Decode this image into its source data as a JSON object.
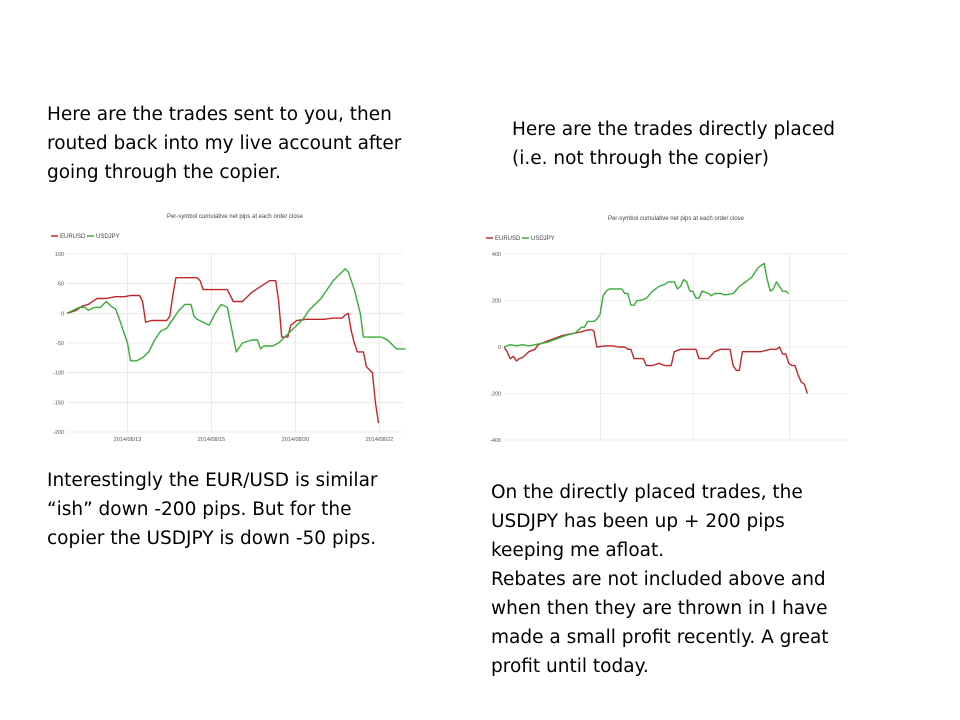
{
  "notes": {
    "top_left": "Here are the trades sent to you, then\nrouted back into my live account after\ngoing through the copier.",
    "top_right": "Here are the trades directly placed\n(i.e. not through the copier)",
    "bottom_left": "Interestingly the EUR/USD is similar\n“ish” down -200 pips. But for the\ncopier the USDJPY is down -50 pips.",
    "bottom_right": "On the directly placed trades, the\nUSDJPY has been up + 200 pips\nkeeping me afloat.\nRebates are not included above  and\nwhen then they are thrown in I have\nmade a small profit recently. A great\nprofit until today."
  },
  "colors": {
    "EURUSD": "#c0282d",
    "USDJPY": "#3aac3a",
    "grid": "#dddddd"
  },
  "chart_data": [
    {
      "type": "line",
      "title": "Per-symbol cumulative net pips at each order close",
      "legend": [
        "EURUSD",
        "USDJPY"
      ],
      "legend_position": "top-left",
      "grid": true,
      "ylim": [
        -200,
        100
      ],
      "yticks": [
        100,
        50,
        0,
        -50,
        -100,
        -150,
        -200
      ],
      "xlim": [
        0,
        100
      ],
      "xticks": [
        {
          "pos": 18,
          "label": "2014/08/13"
        },
        {
          "pos": 43,
          "label": "2014/08/15"
        },
        {
          "pos": 68,
          "label": "2014/08/20"
        },
        {
          "pos": 93,
          "label": "2014/08/22"
        }
      ],
      "series": [
        {
          "name": "EURUSD",
          "points": [
            [
              0,
              0
            ],
            [
              3,
              5
            ],
            [
              5,
              12
            ],
            [
              7,
              15
            ],
            [
              9,
              22
            ],
            [
              10,
              25
            ],
            [
              13,
              25
            ],
            [
              16,
              28
            ],
            [
              19,
              28
            ],
            [
              21,
              30
            ],
            [
              24,
              30
            ],
            [
              25,
              20
            ],
            [
              26,
              -15
            ],
            [
              28,
              -12
            ],
            [
              33,
              -12
            ],
            [
              34,
              -5
            ],
            [
              35,
              30
            ],
            [
              36,
              60
            ],
            [
              43,
              60
            ],
            [
              44,
              55
            ],
            [
              45,
              40
            ],
            [
              53,
              40
            ],
            [
              54,
              30
            ],
            [
              55,
              20
            ],
            [
              58,
              20
            ],
            [
              61,
              35
            ],
            [
              64,
              45
            ],
            [
              67,
              55
            ],
            [
              69,
              55
            ],
            [
              70,
              20
            ],
            [
              71,
              -40
            ],
            [
              73,
              -40
            ],
            [
              74,
              -20
            ],
            [
              76,
              -12
            ],
            [
              79,
              -10
            ],
            [
              84,
              -10
            ],
            [
              85,
              -10
            ],
            [
              88,
              -8
            ],
            [
              91,
              -8
            ],
            [
              92,
              -3
            ],
            [
              93,
              0
            ],
            [
              94,
              -30
            ],
            [
              95,
              -50
            ],
            [
              96,
              -65
            ],
            [
              98,
              -65
            ],
            [
              99,
              -90
            ],
            [
              100,
              -95
            ],
            [
              101,
              -100
            ],
            [
              102,
              -150
            ],
            [
              103,
              -185
            ]
          ]
        },
        {
          "name": "USDJPY",
          "points": [
            [
              0,
              0
            ],
            [
              2,
              5
            ],
            [
              4,
              10
            ],
            [
              6,
              10
            ],
            [
              7,
              5
            ],
            [
              9,
              10
            ],
            [
              11,
              10
            ],
            [
              13,
              20
            ],
            [
              15,
              10
            ],
            [
              16,
              8
            ],
            [
              17,
              -5
            ],
            [
              18,
              -20
            ],
            [
              20,
              -50
            ],
            [
              21,
              -80
            ],
            [
              23,
              -80
            ],
            [
              25,
              -75
            ],
            [
              27,
              -65
            ],
            [
              29,
              -45
            ],
            [
              31,
              -30
            ],
            [
              33,
              -25
            ],
            [
              35,
              -10
            ],
            [
              37,
              5
            ],
            [
              39,
              15
            ],
            [
              41,
              15
            ],
            [
              42,
              -5
            ],
            [
              43,
              -10
            ],
            [
              45,
              -15
            ],
            [
              47,
              -20
            ],
            [
              48,
              -10
            ],
            [
              49,
              0
            ],
            [
              51,
              15
            ],
            [
              53,
              10
            ],
            [
              55,
              -40
            ],
            [
              56,
              -65
            ],
            [
              58,
              -50
            ],
            [
              61,
              -45
            ],
            [
              63,
              -45
            ],
            [
              64,
              -60
            ],
            [
              65,
              -55
            ],
            [
              68,
              -55
            ],
            [
              70,
              -50
            ],
            [
              72,
              -40
            ],
            [
              74,
              -30
            ],
            [
              76,
              -20
            ],
            [
              78,
              -10
            ],
            [
              80,
              5
            ],
            [
              82,
              15
            ],
            [
              84,
              25
            ],
            [
              86,
              40
            ],
            [
              88,
              55
            ],
            [
              90,
              65
            ],
            [
              92,
              75
            ],
            [
              93,
              70
            ],
            [
              95,
              40
            ],
            [
              97,
              0
            ],
            [
              98,
              -40
            ],
            [
              104,
              -40
            ],
            [
              106,
              -45
            ],
            [
              108,
              -55
            ],
            [
              109,
              -60
            ],
            [
              112,
              -60
            ]
          ]
        }
      ]
    },
    {
      "type": "line",
      "title": "Per-symbol cumulative net pips at each order close",
      "legend": [
        "EURUSD",
        "USDJPY"
      ],
      "legend_position": "top-left",
      "grid": true,
      "ylim": [
        -400,
        400
      ],
      "yticks": [
        400,
        200,
        0,
        -200,
        -400
      ],
      "xlim": [
        0,
        100
      ],
      "xticks": [
        {
          "pos": 28,
          "label": "2014/08/07"
        },
        {
          "pos": 55,
          "label": "2014/08/14"
        },
        {
          "pos": 83,
          "label": "2014/08/20"
        }
      ],
      "series": [
        {
          "name": "EURUSD",
          "points": [
            [
              0,
              0
            ],
            [
              1,
              -20
            ],
            [
              2,
              -50
            ],
            [
              3,
              -40
            ],
            [
              4,
              -60
            ],
            [
              5,
              -50
            ],
            [
              6,
              -45
            ],
            [
              8,
              -20
            ],
            [
              10,
              -10
            ],
            [
              11,
              10
            ],
            [
              13,
              20
            ],
            [
              15,
              30
            ],
            [
              17,
              40
            ],
            [
              19,
              50
            ],
            [
              21,
              55
            ],
            [
              23,
              60
            ],
            [
              25,
              65
            ],
            [
              26,
              70
            ],
            [
              28,
              75
            ],
            [
              29,
              70
            ],
            [
              30,
              0
            ],
            [
              33,
              5
            ],
            [
              35,
              5
            ],
            [
              37,
              0
            ],
            [
              39,
              0
            ],
            [
              40,
              -10
            ],
            [
              41,
              -10
            ],
            [
              42,
              -50
            ],
            [
              43,
              -50
            ],
            [
              45,
              -50
            ],
            [
              46,
              -80
            ],
            [
              48,
              -80
            ],
            [
              50,
              -70
            ],
            [
              52,
              -80
            ],
            [
              54,
              -80
            ],
            [
              55,
              -20
            ],
            [
              57,
              -10
            ],
            [
              59,
              -10
            ],
            [
              62,
              -10
            ],
            [
              63,
              -50
            ],
            [
              66,
              -50
            ],
            [
              68,
              -20
            ],
            [
              70,
              -10
            ],
            [
              73,
              -10
            ],
            [
              74,
              -80
            ],
            [
              75,
              -100
            ],
            [
              76,
              -100
            ],
            [
              77,
              -20
            ],
            [
              80,
              -20
            ],
            [
              83,
              -20
            ],
            [
              86,
              -10
            ],
            [
              88,
              -10
            ],
            [
              89,
              0
            ],
            [
              90,
              -30
            ],
            [
              91,
              -30
            ],
            [
              92,
              -70
            ],
            [
              93,
              -80
            ],
            [
              94,
              -80
            ],
            [
              95,
              -120
            ],
            [
              96,
              -150
            ],
            [
              97,
              -160
            ],
            [
              98,
              -200
            ]
          ]
        },
        {
          "name": "USDJPY",
          "points": [
            [
              0,
              0
            ],
            [
              2,
              10
            ],
            [
              4,
              5
            ],
            [
              6,
              10
            ],
            [
              8,
              5
            ],
            [
              10,
              10
            ],
            [
              12,
              15
            ],
            [
              14,
              20
            ],
            [
              16,
              30
            ],
            [
              18,
              40
            ],
            [
              20,
              50
            ],
            [
              23,
              60
            ],
            [
              25,
              85
            ],
            [
              26,
              85
            ],
            [
              27,
              110
            ],
            [
              29,
              110
            ],
            [
              30,
              120
            ],
            [
              31,
              140
            ],
            [
              32,
              220
            ],
            [
              33,
              240
            ],
            [
              34,
              250
            ],
            [
              38,
              250
            ],
            [
              39,
              230
            ],
            [
              40,
              230
            ],
            [
              41,
              180
            ],
            [
              42,
              180
            ],
            [
              43,
              200
            ],
            [
              44,
              200
            ],
            [
              46,
              210
            ],
            [
              48,
              240
            ],
            [
              50,
              260
            ],
            [
              52,
              270
            ],
            [
              53,
              280
            ],
            [
              55,
              280
            ],
            [
              56,
              250
            ],
            [
              57,
              260
            ],
            [
              58,
              290
            ],
            [
              59,
              280
            ],
            [
              60,
              240
            ],
            [
              61,
              240
            ],
            [
              62,
              210
            ],
            [
              63,
              210
            ],
            [
              64,
              240
            ],
            [
              66,
              230
            ],
            [
              67,
              220
            ],
            [
              68,
              230
            ],
            [
              70,
              230
            ],
            [
              71,
              225
            ],
            [
              72,
              225
            ],
            [
              74,
              230
            ],
            [
              76,
              260
            ],
            [
              78,
              280
            ],
            [
              80,
              300
            ],
            [
              81,
              320
            ],
            [
              82,
              340
            ],
            [
              83,
              350
            ],
            [
              84,
              360
            ],
            [
              85,
              290
            ],
            [
              86,
              240
            ],
            [
              87,
              250
            ],
            [
              88,
              280
            ],
            [
              90,
              240
            ],
            [
              91,
              240
            ],
            [
              92,
              230
            ]
          ]
        }
      ]
    }
  ]
}
